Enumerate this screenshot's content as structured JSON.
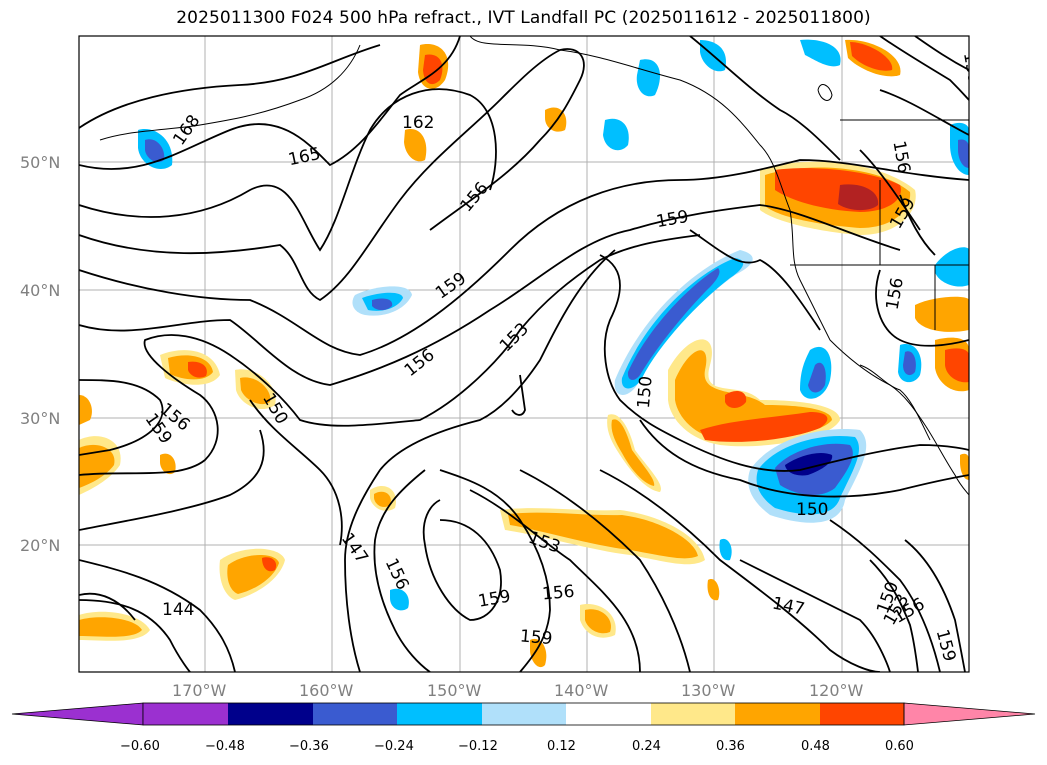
{
  "title": "2025011300 F024 500 hPa refract., IVT Landfall PC (2025011612 - 2025011800)",
  "axes": {
    "lat_labels": [
      "50°N",
      "40°N",
      "30°N",
      "20°N"
    ],
    "lon_labels": [
      "170°W",
      "160°W",
      "150°W",
      "140°W",
      "130°W",
      "120°W"
    ]
  },
  "contour_labels": [
    "168",
    "165",
    "162",
    "156",
    "159",
    "153",
    "156",
    "150",
    "156",
    "159",
    "159",
    "150",
    "156",
    "159",
    "147",
    "156",
    "153",
    "159",
    "156",
    "159",
    "144",
    "150",
    "147",
    "150",
    "153",
    "156",
    "159",
    "156",
    "159"
  ],
  "colorbar": {
    "ticks": [
      "−0.60",
      "−0.48",
      "−0.36",
      "−0.24",
      "−0.12",
      "0.12",
      "0.24",
      "0.36",
      "0.48",
      "0.60"
    ],
    "colors": {
      "under": "#9b30d0",
      "bins": [
        "#9b30d0",
        "#00008b",
        "#3a5bd0",
        "#00bfff",
        "#b0e0fa",
        "#ffffff",
        "#ffe88a",
        "#ffa500",
        "#ff4500",
        "#b22222"
      ],
      "over": "#ff85a8"
    }
  },
  "fill_colors": {
    "neg1": "#b0e0fa",
    "neg2": "#00bfff",
    "neg3": "#3a5bd0",
    "neg4": "#00008b",
    "pos1": "#ffe88a",
    "pos2": "#ffa500",
    "pos3": "#ff4500",
    "pos4": "#b22222"
  }
}
